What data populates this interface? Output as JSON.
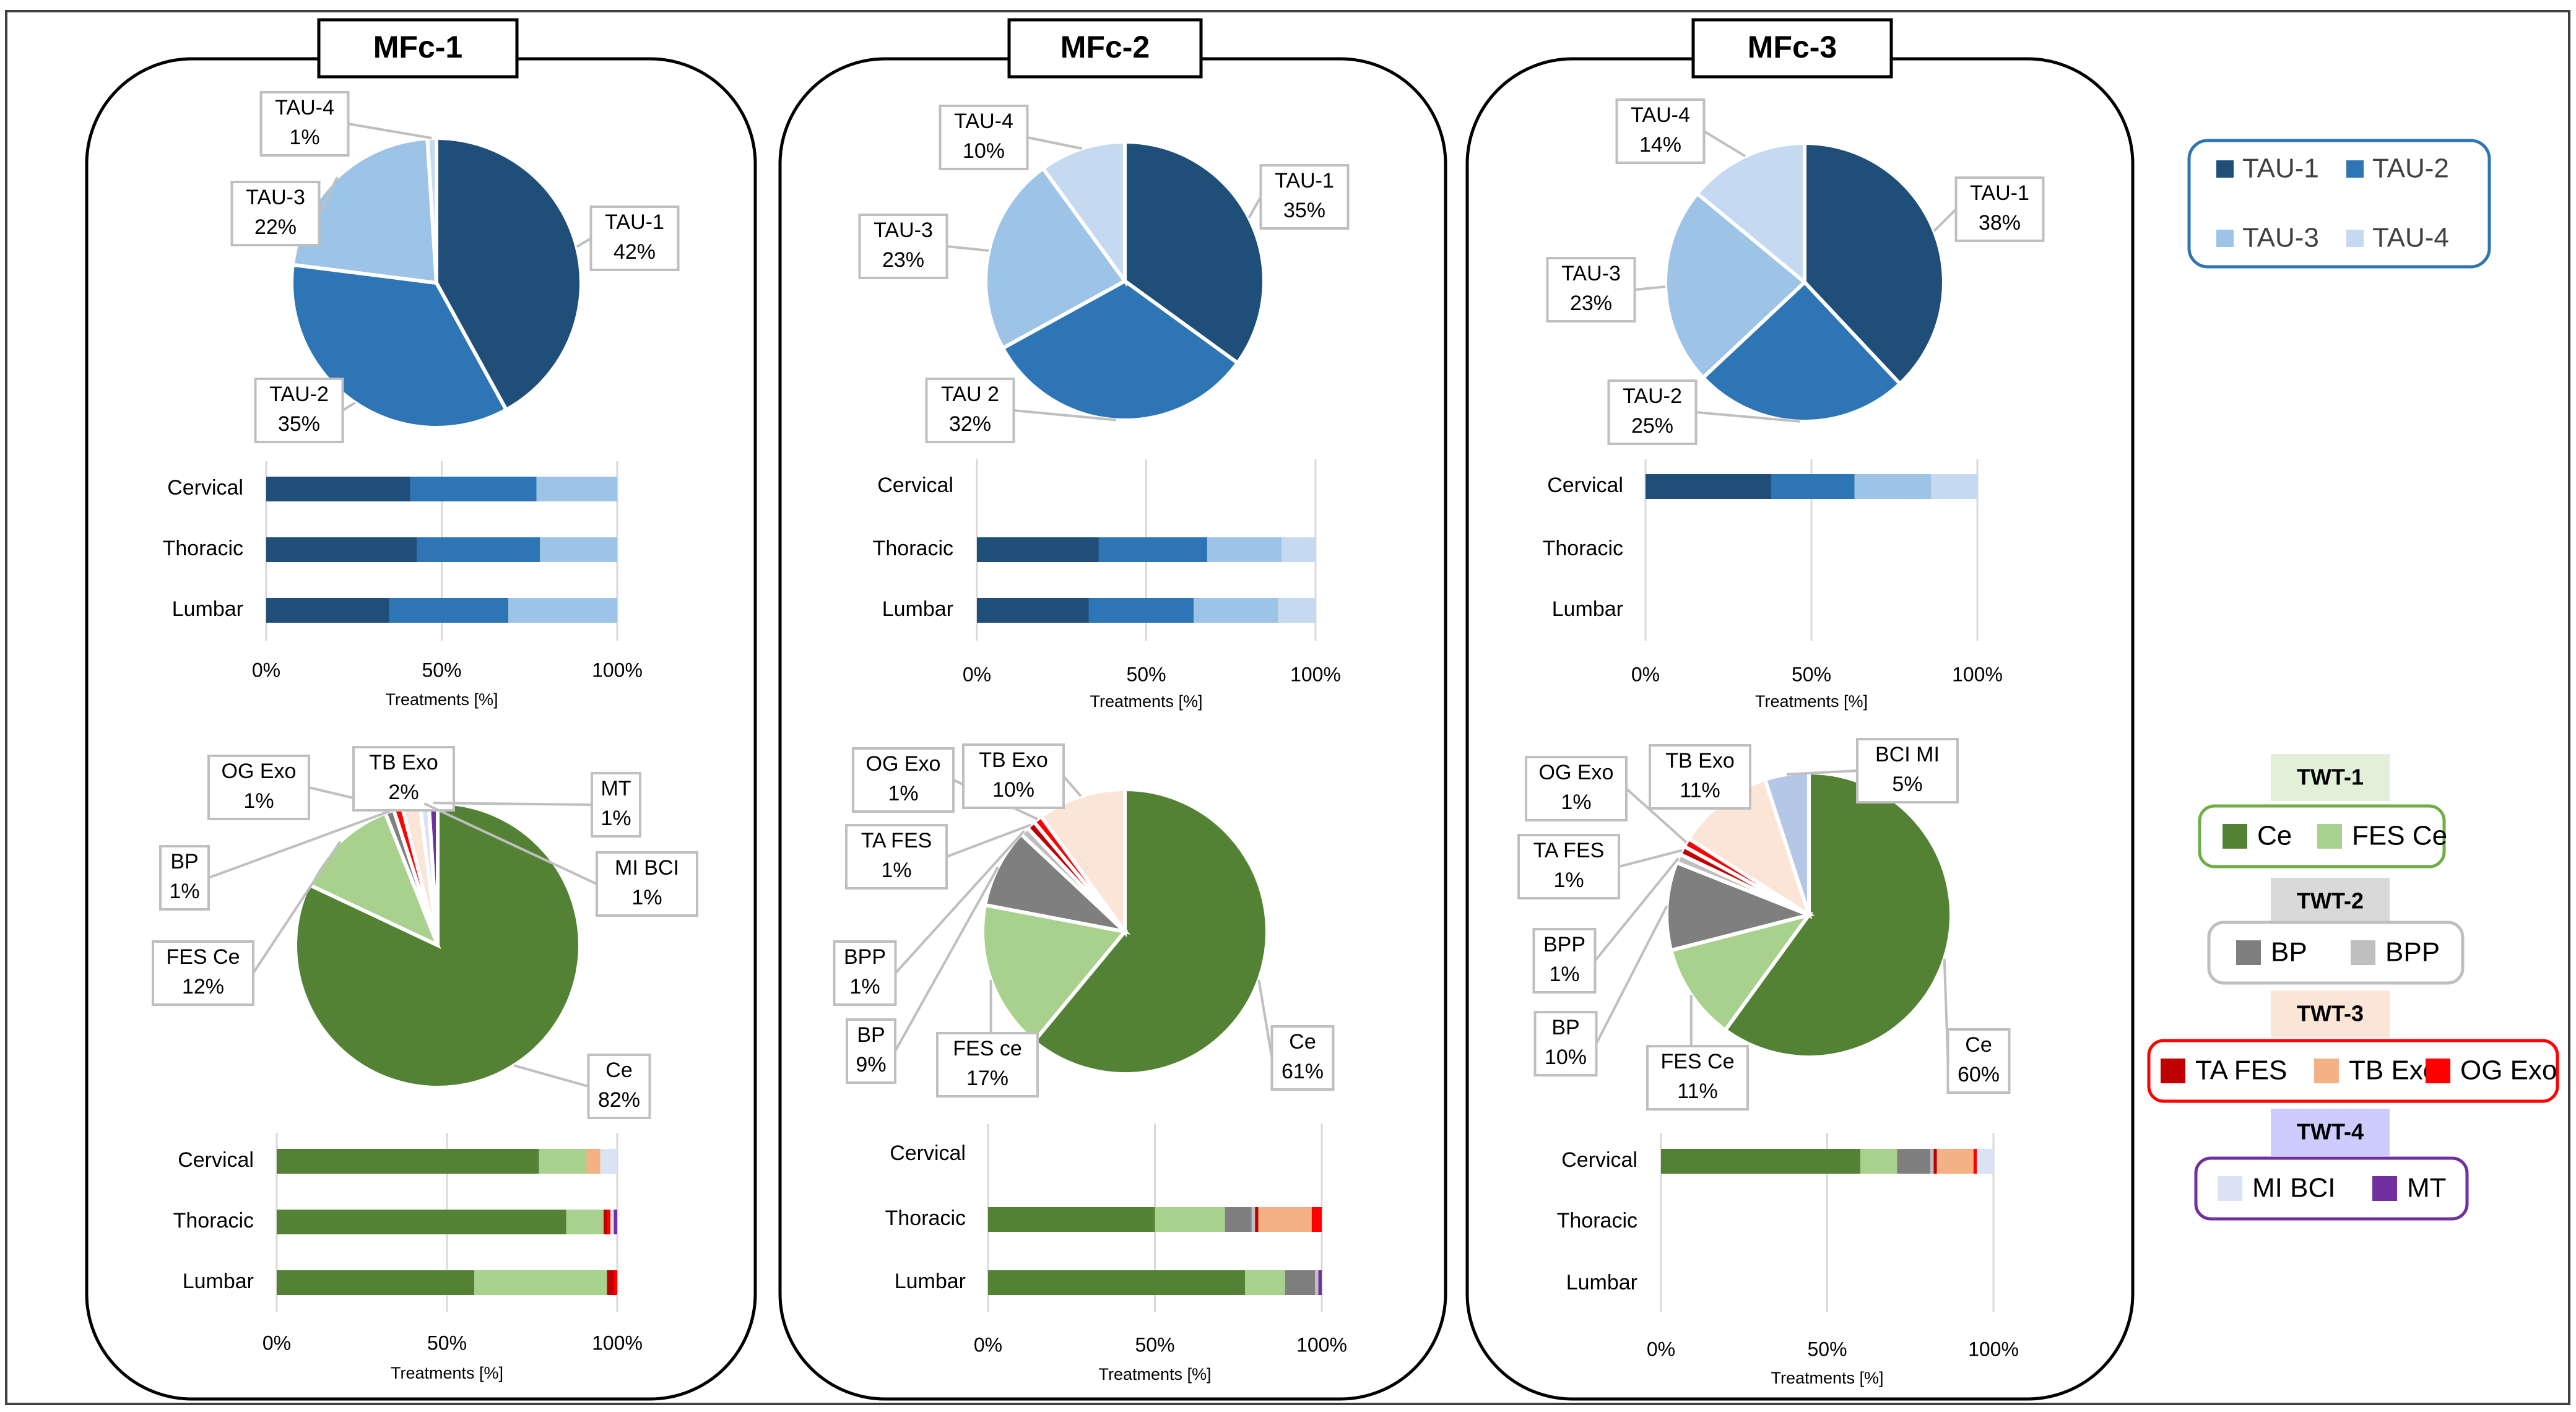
{
  "colors": {
    "TAU-1": "#1f4e79",
    "TAU-2": "#2e75b6",
    "TAU-3": "#9dc3e6",
    "TAU-4": "#c5daf0",
    "Ce": "#548235",
    "FES Ce": "#a9d18e",
    "BP": "#7f7f7f",
    "BPP": "#bfbfbf",
    "TA FES": "#c00000",
    "TB Exo": "#f4b183",
    "TB Exo pie": "#fbe5d6",
    "OG Exo": "#ff0000",
    "MI BCI": "#dae3f3",
    "MT": "#7030a0",
    "twt1_bg": "#e2f0d9",
    "twt1_border": "#70ad47",
    "twt2_bg": "#d9d9d9",
    "twt2_border": "#bfbfbf",
    "twt3_bg": "#fbe5d6",
    "twt3_border": "#ff0000",
    "twt4_bg": "#ccccff",
    "twt4_border": "#7030a0",
    "tau_border": "#2e75b6"
  },
  "legends": {
    "tau": [
      "TAU-1",
      "TAU-2",
      "TAU-3",
      "TAU-4"
    ],
    "groups": [
      {
        "title": "TWT-1",
        "items": [
          "Ce",
          "FES Ce"
        ],
        "theme": "twt1"
      },
      {
        "title": "TWT-2",
        "items": [
          "BP",
          "BPP"
        ],
        "theme": "twt2"
      },
      {
        "title": "TWT-3",
        "items": [
          "TA FES",
          "TB Exo",
          "OG Exo"
        ],
        "theme": "twt3"
      },
      {
        "title": "TWT-4",
        "items": [
          "MI BCI",
          "MT"
        ],
        "theme": "twt4"
      }
    ]
  },
  "chart_data": [
    {
      "panel": "MFc-1",
      "type": "pie",
      "title": "MFc-1",
      "slices": [
        {
          "label": "TAU-1",
          "value": 42,
          "color_key": "TAU-1",
          "label_text": "TAU-1|42%"
        },
        {
          "label": "TAU-2",
          "value": 35,
          "color_key": "TAU-2",
          "label_text": "TAU-2|35%"
        },
        {
          "label": "TAU-3",
          "value": 22,
          "color_key": "TAU-3",
          "label_text": "TAU-3|22%"
        },
        {
          "label": "TAU-4",
          "value": 1,
          "color_key": "TAU-4",
          "label_text": "TAU-4|1%"
        }
      ]
    },
    {
      "panel": "MFc-1",
      "type": "bar",
      "orientation": "horizontal",
      "stacked": "100%",
      "categories": [
        "Cervical",
        "Thoracic",
        "Lumbar"
      ],
      "xlabel": "Treatments [%]",
      "xticks": [
        "0%",
        "50%",
        "100%"
      ],
      "xlim": [
        0,
        100
      ],
      "series": [
        {
          "name": "TAU-1",
          "values": [
            41,
            43,
            35
          ]
        },
        {
          "name": "TAU-2",
          "values": [
            36,
            35,
            34
          ]
        },
        {
          "name": "TAU-3",
          "values": [
            23,
            22,
            31
          ]
        },
        {
          "name": "TAU-4",
          "values": [
            0,
            0,
            0
          ]
        }
      ]
    },
    {
      "panel": "MFc-1",
      "type": "pie",
      "slices": [
        {
          "label": "Ce",
          "value": 82,
          "color_key": "Ce",
          "label_text": "Ce|82%"
        },
        {
          "label": "FES Ce",
          "value": 12,
          "color_key": "FES Ce",
          "label_text": "FES Ce|12%"
        },
        {
          "label": "BP",
          "value": 1,
          "color_key": "BP",
          "label_text": "BP|1%"
        },
        {
          "label": "OG Exo",
          "value": 1,
          "color_key": "OG Exo",
          "label_text": "OG Exo|1%"
        },
        {
          "label": "TB Exo",
          "value": 2,
          "color_key": "TB Exo pie",
          "label_text": "TB Exo|2%"
        },
        {
          "label": "MI BCI",
          "value": 1,
          "color_key": "MI BCI",
          "label_text": "MI BCI|1%"
        },
        {
          "label": "MT",
          "value": 1,
          "color_key": "MT",
          "label_text": "MT|1%"
        }
      ]
    },
    {
      "panel": "MFc-1",
      "type": "bar",
      "orientation": "horizontal",
      "stacked": "100%",
      "categories": [
        "Cervical",
        "Thoracic",
        "Lumbar"
      ],
      "xlabel": "Treatments [%]",
      "xticks": [
        "0%",
        "50%",
        "100%"
      ],
      "xlim": [
        0,
        100
      ],
      "series": [
        {
          "name": "Ce",
          "values": [
            77,
            85,
            58
          ]
        },
        {
          "name": "FES Ce",
          "values": [
            14,
            11,
            39
          ]
        },
        {
          "name": "BP",
          "values": [
            0,
            0,
            0
          ]
        },
        {
          "name": "BPP",
          "values": [
            0,
            0,
            0
          ]
        },
        {
          "name": "TA FES",
          "values": [
            0,
            1,
            2
          ]
        },
        {
          "name": "TB Exo",
          "values": [
            4,
            0,
            0
          ]
        },
        {
          "name": "OG Exo",
          "values": [
            0,
            1,
            1
          ]
        },
        {
          "name": "MI BCI",
          "values": [
            5,
            1,
            0
          ]
        },
        {
          "name": "MT",
          "values": [
            0,
            1,
            0
          ]
        }
      ]
    },
    {
      "panel": "MFc-2",
      "type": "pie",
      "title": "MFc-2",
      "slices": [
        {
          "label": "TAU-1",
          "value": 35,
          "color_key": "TAU-1",
          "label_text": "TAU-1|35%"
        },
        {
          "label": "TAU-2",
          "value": 32,
          "color_key": "TAU-2",
          "label_text": "TAU 2|32%"
        },
        {
          "label": "TAU-3",
          "value": 23,
          "color_key": "TAU-3",
          "label_text": "TAU-3|23%"
        },
        {
          "label": "TAU-4",
          "value": 10,
          "color_key": "TAU-4",
          "label_text": "TAU-4|10%"
        }
      ]
    },
    {
      "panel": "MFc-2",
      "type": "bar",
      "orientation": "horizontal",
      "stacked": "100%",
      "categories": [
        "Cervical",
        "Thoracic",
        "Lumbar"
      ],
      "xlabel": "Treatments [%]",
      "xticks": [
        "0%",
        "50%",
        "100%"
      ],
      "xlim": [
        0,
        100
      ],
      "series": [
        {
          "name": "TAU-1",
          "values": [
            0,
            36,
            33
          ]
        },
        {
          "name": "TAU-2",
          "values": [
            0,
            32,
            31
          ]
        },
        {
          "name": "TAU-3",
          "values": [
            0,
            22,
            25
          ]
        },
        {
          "name": "TAU-4",
          "values": [
            0,
            10,
            11
          ]
        }
      ]
    },
    {
      "panel": "MFc-2",
      "type": "pie",
      "slices": [
        {
          "label": "Ce",
          "value": 61,
          "color_key": "Ce",
          "label_text": "Ce|61%"
        },
        {
          "label": "FES ce",
          "value": 17,
          "color_key": "FES Ce",
          "label_text": "FES ce|17%"
        },
        {
          "label": "BP",
          "value": 9,
          "color_key": "BP",
          "label_text": "BP|9%"
        },
        {
          "label": "BPP",
          "value": 1,
          "color_key": "BPP",
          "label_text": "BPP|1%"
        },
        {
          "label": "TA FES",
          "value": 1,
          "color_key": "TA FES",
          "label_text": "TA FES|1%"
        },
        {
          "label": "OG Exo",
          "value": 1,
          "color_key": "OG Exo",
          "label_text": "OG Exo|1%"
        },
        {
          "label": "TB Exo",
          "value": 10,
          "color_key": "TB Exo pie",
          "label_text": "TB Exo|10%"
        }
      ]
    },
    {
      "panel": "MFc-2",
      "type": "bar",
      "orientation": "horizontal",
      "stacked": "100%",
      "categories": [
        "Cervical",
        "Thoracic",
        "Lumbar"
      ],
      "xlabel": "Treatments [%]",
      "xticks": [
        "0%",
        "50%",
        "100%"
      ],
      "xlim": [
        0,
        100
      ],
      "series": [
        {
          "name": "Ce",
          "values": [
            0,
            50,
            77
          ]
        },
        {
          "name": "FES Ce",
          "values": [
            0,
            21,
            12
          ]
        },
        {
          "name": "BP",
          "values": [
            0,
            8,
            9
          ]
        },
        {
          "name": "BPP",
          "values": [
            0,
            1,
            1
          ]
        },
        {
          "name": "TA FES",
          "values": [
            0,
            1,
            0
          ]
        },
        {
          "name": "TB Exo",
          "values": [
            0,
            16,
            0
          ]
        },
        {
          "name": "OG Exo",
          "values": [
            0,
            3,
            0
          ]
        },
        {
          "name": "MI BCI",
          "values": [
            0,
            0,
            0
          ]
        },
        {
          "name": "MT",
          "values": [
            0,
            0,
            1
          ]
        }
      ]
    },
    {
      "panel": "MFc-3",
      "type": "pie",
      "title": "MFc-3",
      "slices": [
        {
          "label": "TAU-1",
          "value": 38,
          "color_key": "TAU-1",
          "label_text": "TAU-1|38%"
        },
        {
          "label": "TAU-2",
          "value": 25,
          "color_key": "TAU-2",
          "label_text": "TAU-2|25%"
        },
        {
          "label": "TAU-3",
          "value": 23,
          "color_key": "TAU-3",
          "label_text": "TAU-3|23%"
        },
        {
          "label": "TAU-4",
          "value": 14,
          "color_key": "TAU-4",
          "label_text": "TAU-4|14%"
        }
      ]
    },
    {
      "panel": "MFc-3",
      "type": "bar",
      "orientation": "horizontal",
      "stacked": "100%",
      "categories": [
        "Cervical",
        "Thoracic",
        "Lumbar"
      ],
      "xlabel": "Treatments [%]",
      "xticks": [
        "0%",
        "50%",
        "100%"
      ],
      "xlim": [
        0,
        100
      ],
      "series": [
        {
          "name": "TAU-1",
          "values": [
            38,
            0,
            0
          ]
        },
        {
          "name": "TAU-2",
          "values": [
            25,
            0,
            0
          ]
        },
        {
          "name": "TAU-3",
          "values": [
            23,
            0,
            0
          ]
        },
        {
          "name": "TAU-4",
          "values": [
            14,
            0,
            0
          ]
        }
      ]
    },
    {
      "panel": "MFc-3",
      "type": "pie",
      "slices": [
        {
          "label": "Ce",
          "value": 60,
          "color_key": "Ce",
          "label_text": "Ce|60%"
        },
        {
          "label": "FES Ce",
          "value": 11,
          "color_key": "FES Ce",
          "label_text": "FES Ce|11%"
        },
        {
          "label": "BP",
          "value": 10,
          "color_key": "BP",
          "label_text": "BP|10%"
        },
        {
          "label": "BPP",
          "value": 1,
          "color_key": "BPP",
          "label_text": "BPP|1%"
        },
        {
          "label": "TA FES",
          "value": 1,
          "color_key": "TA FES",
          "label_text": "TA FES|1%"
        },
        {
          "label": "OG Exo",
          "value": 1,
          "color_key": "OG Exo",
          "label_text": "OG Exo|1%"
        },
        {
          "label": "TB Exo",
          "value": 11,
          "color_key": "TB Exo pie",
          "label_text": "TB Exo|11%"
        },
        {
          "label": "BCI MI",
          "value": 5,
          "color_key": "MI BCI pie",
          "label_text": "BCI MI|5%"
        }
      ]
    },
    {
      "panel": "MFc-3",
      "type": "bar",
      "orientation": "horizontal",
      "stacked": "100%",
      "categories": [
        "Cervical",
        "Thoracic",
        "Lumbar"
      ],
      "xlabel": "Treatments [%]",
      "xticks": [
        "0%",
        "50%",
        "100%"
      ],
      "xlim": [
        0,
        100
      ],
      "series": [
        {
          "name": "Ce",
          "values": [
            60,
            0,
            0
          ]
        },
        {
          "name": "FES Ce",
          "values": [
            11,
            0,
            0
          ]
        },
        {
          "name": "BP",
          "values": [
            10,
            0,
            0
          ]
        },
        {
          "name": "BPP",
          "values": [
            1,
            0,
            0
          ]
        },
        {
          "name": "TA FES",
          "values": [
            1,
            0,
            0
          ]
        },
        {
          "name": "TB Exo",
          "values": [
            11,
            0,
            0
          ]
        },
        {
          "name": "OG Exo",
          "values": [
            1,
            0,
            0
          ]
        },
        {
          "name": "MI BCI",
          "values": [
            5,
            0,
            0
          ]
        },
        {
          "name": "MT",
          "values": [
            0,
            0,
            0
          ]
        }
      ]
    }
  ]
}
